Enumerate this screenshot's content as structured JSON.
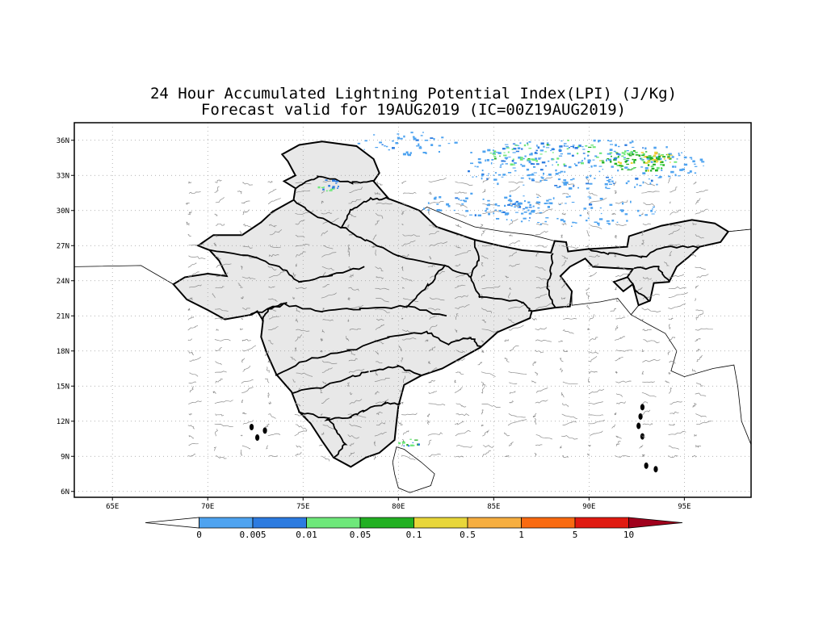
{
  "title_line1": "24 Hour Accumulated Lightning Potential Index(LPI) (J/Kg)",
  "title_line2": "Forecast valid for 19AUG2019 (IC=00Z19AUG2019)",
  "map": {
    "lon_range": [
      63,
      98.5
    ],
    "lat_range": [
      5.5,
      37.5
    ],
    "lon_ticks": [
      {
        "value": 65,
        "label": "65E"
      },
      {
        "value": 70,
        "label": "70E"
      },
      {
        "value": 75,
        "label": "75E"
      },
      {
        "value": 80,
        "label": "80E"
      },
      {
        "value": 85,
        "label": "85E"
      },
      {
        "value": 90,
        "label": "90E"
      },
      {
        "value": 95,
        "label": "95E"
      }
    ],
    "lat_ticks": [
      {
        "value": 6,
        "label": "6N"
      },
      {
        "value": 9,
        "label": "9N"
      },
      {
        "value": 12,
        "label": "12N"
      },
      {
        "value": 15,
        "label": "15N"
      },
      {
        "value": 18,
        "label": "18N"
      },
      {
        "value": 21,
        "label": "21N"
      },
      {
        "value": 24,
        "label": "24N"
      },
      {
        "value": 27,
        "label": "27N"
      },
      {
        "value": 30,
        "label": "30N"
      },
      {
        "value": 33,
        "label": "33N"
      },
      {
        "value": 36,
        "label": "36N"
      }
    ],
    "grid": true,
    "land_color": "#e8e8e8"
  },
  "colorbar": {
    "labels": [
      "0",
      "0.005",
      "0.01",
      "0.05",
      "0.1",
      "0.5",
      "1",
      "5",
      "10"
    ],
    "colors": [
      "#ffffff",
      "#4ea3f0",
      "#2c7be0",
      "#6ee87a",
      "#22b022",
      "#e8d63a",
      "#f6ae40",
      "#f96a10",
      "#e01a10",
      "#a0001c"
    ]
  },
  "lpi_areas": [
    {
      "lon": 89.5,
      "lat": 34.0,
      "rlon": 6.5,
      "rlat": 2.2,
      "level": 1,
      "count": 260
    },
    {
      "lon": 92.5,
      "lat": 34.3,
      "rlon": 2.0,
      "rlat": 0.9,
      "level": 4,
      "count": 90
    },
    {
      "lon": 93.5,
      "lat": 34.6,
      "rlon": 0.8,
      "rlat": 0.5,
      "level": 5,
      "count": 28
    },
    {
      "lon": 88.0,
      "lat": 34.9,
      "rlon": 3.5,
      "rlat": 1.2,
      "level": 3,
      "count": 80
    },
    {
      "lon": 84.5,
      "lat": 30.6,
      "rlon": 3.5,
      "rlat": 1.0,
      "level": 1,
      "count": 60
    },
    {
      "lon": 89.0,
      "lat": 30.0,
      "rlon": 4.5,
      "rlat": 1.3,
      "level": 1,
      "count": 90
    },
    {
      "lon": 80.5,
      "lat": 35.8,
      "rlon": 3.0,
      "rlat": 1.0,
      "level": 1,
      "count": 45
    },
    {
      "lon": 76.3,
      "lat": 32.2,
      "rlon": 0.6,
      "rlat": 0.5,
      "level": 3,
      "count": 18
    },
    {
      "lon": 80.5,
      "lat": 10.2,
      "rlon": 0.6,
      "rlat": 0.3,
      "level": 3,
      "count": 14
    }
  ]
}
